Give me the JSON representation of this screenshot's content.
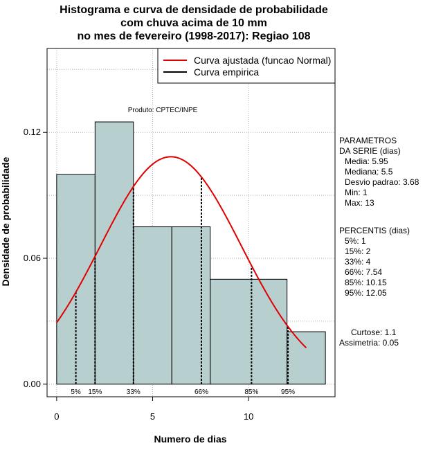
{
  "chart_data": {
    "type": "histogram",
    "title_lines": [
      "Histograma e curva de densidade de probabilidade",
      "com chuva acima de 10 mm",
      "no mes de fevereiro (1998-2017): Regiao 108"
    ],
    "xlabel": "Numero de dias",
    "ylabel": "Densidade de probabilidade",
    "xlim": [
      -0.5,
      14.5
    ],
    "ylim": [
      -0.006,
      0.16
    ],
    "x_ticks": [
      0,
      5,
      10
    ],
    "y_ticks": [
      0.0,
      0.06,
      0.12
    ],
    "y_tick_labels": [
      "0.00",
      "0.06",
      "0.12"
    ],
    "grid": true,
    "bins": [
      {
        "start": 0,
        "end": 2,
        "density": 0.1
      },
      {
        "start": 2,
        "end": 4,
        "density": 0.125
      },
      {
        "start": 4,
        "end": 6,
        "density": 0.075
      },
      {
        "start": 6,
        "end": 8,
        "density": 0.075
      },
      {
        "start": 8,
        "end": 12,
        "density": 0.05
      },
      {
        "start": 12,
        "end": 14,
        "density": 0.025
      }
    ],
    "bar_color": "#b8cfcf",
    "normal_curve": {
      "mean": 5.95,
      "sd": 3.68,
      "x_from": 0,
      "x_to": 13,
      "color": "#e00000"
    },
    "percentile_lines": [
      {
        "label": "5%",
        "x": 1
      },
      {
        "label": "15%",
        "x": 2
      },
      {
        "label": "33%",
        "x": 4
      },
      {
        "label": "66%",
        "x": 7.54
      },
      {
        "label": "85%",
        "x": 10.15
      },
      {
        "label": "95%",
        "x": 12.05
      }
    ],
    "legend": {
      "position": "top-right",
      "entries": [
        {
          "label": "Curva ajustada (funcao Normal)",
          "color": "#e00000"
        },
        {
          "label": "Curva empirica",
          "color": "#000000"
        }
      ]
    },
    "annotation": "Produto: CPTEC/INPE"
  },
  "side_panel": {
    "parametros": [
      "PARAMETROS",
      "DA SERIE (dias)",
      "Media: 5.95",
      "Mediana: 5.5",
      "Desvio padrao: 3.68",
      "Min: 1",
      "Max: 13"
    ],
    "percentis": [
      "PERCENTIS (dias)",
      "5%: 1",
      "15%: 2",
      "33%: 4",
      "66%: 7.54",
      "85%: 10.15",
      "95%: 12.05"
    ],
    "curtose": "Curtose: 1.1",
    "assimetria": "Assimetria: 0.05"
  }
}
